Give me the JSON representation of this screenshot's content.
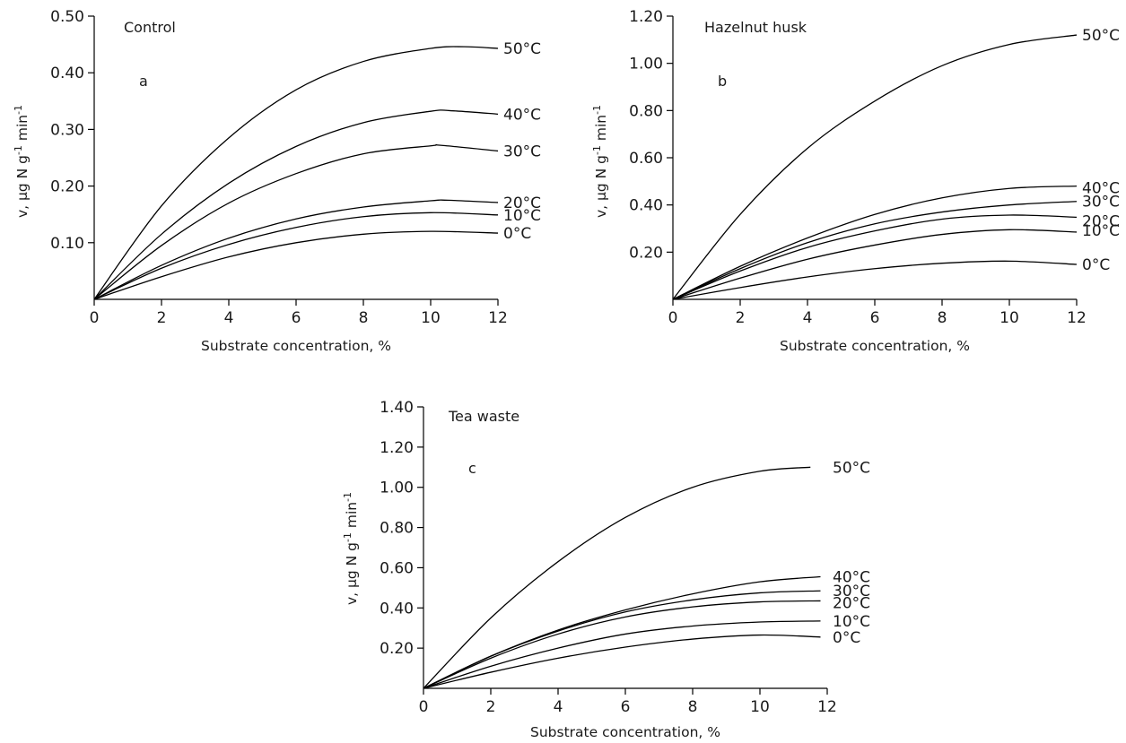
{
  "chart_data": [
    {
      "type": "line",
      "title": "Control",
      "panel_label": "a",
      "xlabel": "Substrate concentration, %",
      "ylabel_main": "v, µg N g",
      "ylabel_sup1": "-1",
      "ylabel_mid": " min",
      "ylabel_sup2": "-1",
      "xlim": [
        0,
        12
      ],
      "ylim": [
        0,
        0.5
      ],
      "x_ticks": [
        "0",
        "2",
        "4",
        "6",
        "8",
        "10",
        "12"
      ],
      "y_ticks": [
        "0.10",
        "0.20",
        "0.30",
        "0.40",
        "0.50"
      ],
      "series": [
        {
          "name": "50°C",
          "x": [
            0,
            2,
            4,
            6,
            8,
            10,
            11,
            12
          ],
          "y": [
            0,
            0.165,
            0.285,
            0.37,
            0.42,
            0.443,
            0.446,
            0.443
          ]
        },
        {
          "name": "40°C",
          "x": [
            0,
            2,
            4,
            6,
            8,
            10,
            10.6,
            12
          ],
          "y": [
            0,
            0.115,
            0.205,
            0.27,
            0.312,
            0.332,
            0.333,
            0.327
          ]
        },
        {
          "name": "30°C",
          "x": [
            0,
            2,
            4,
            6,
            8,
            10,
            10.3,
            12
          ],
          "y": [
            0,
            0.095,
            0.17,
            0.222,
            0.257,
            0.271,
            0.272,
            0.262
          ]
        },
        {
          "name": "20°C",
          "x": [
            0,
            2,
            4,
            6,
            8,
            10,
            10.5,
            12
          ],
          "y": [
            0,
            0.06,
            0.108,
            0.142,
            0.163,
            0.174,
            0.175,
            0.171
          ]
        },
        {
          "name": "10°C",
          "x": [
            0,
            2,
            4,
            6,
            8,
            10,
            12
          ],
          "y": [
            0,
            0.055,
            0.097,
            0.127,
            0.146,
            0.153,
            0.149
          ]
        },
        {
          "name": "0°C",
          "x": [
            0,
            2,
            4,
            6,
            8,
            10,
            12
          ],
          "y": [
            0,
            0.04,
            0.075,
            0.1,
            0.115,
            0.12,
            0.117
          ]
        }
      ]
    },
    {
      "type": "line",
      "title": "Hazelnut husk",
      "panel_label": "b",
      "xlabel": "Substrate concentration, %",
      "ylabel_main": "v, µg N g",
      "ylabel_sup1": "-1",
      "ylabel_mid": " min",
      "ylabel_sup2": "-1",
      "xlim": [
        0,
        12
      ],
      "ylim": [
        0,
        1.2
      ],
      "x_ticks": [
        "0",
        "2",
        "4",
        "6",
        "8",
        "10",
        "12"
      ],
      "y_ticks": [
        "0.20",
        "0.40",
        "0.60",
        "0.80",
        "1.00",
        "1.20"
      ],
      "series": [
        {
          "name": "50°C",
          "x": [
            0,
            2,
            4,
            6,
            8,
            10,
            12
          ],
          "y": [
            0,
            0.36,
            0.64,
            0.84,
            0.99,
            1.08,
            1.12
          ]
        },
        {
          "name": "40°C",
          "x": [
            0,
            2,
            4,
            6,
            8,
            10,
            12
          ],
          "y": [
            0,
            0.14,
            0.26,
            0.36,
            0.43,
            0.47,
            0.48
          ]
        },
        {
          "name": "30°C",
          "x": [
            0,
            2,
            4,
            6,
            8,
            10,
            12
          ],
          "y": [
            0,
            0.13,
            0.24,
            0.32,
            0.37,
            0.4,
            0.415
          ]
        },
        {
          "name": "20°C",
          "x": [
            0,
            2,
            4,
            6,
            8,
            10,
            12
          ],
          "y": [
            0,
            0.12,
            0.22,
            0.29,
            0.34,
            0.357,
            0.348
          ]
        },
        {
          "name": "10°C",
          "x": [
            0,
            2,
            4,
            6,
            8,
            10,
            12
          ],
          "y": [
            0,
            0.09,
            0.17,
            0.23,
            0.275,
            0.295,
            0.285
          ]
        },
        {
          "name": "0°C",
          "x": [
            0,
            2,
            4,
            6,
            8,
            10,
            12
          ],
          "y": [
            0,
            0.05,
            0.095,
            0.13,
            0.153,
            0.162,
            0.148
          ]
        }
      ]
    },
    {
      "type": "line",
      "title": "Tea waste",
      "panel_label": "c",
      "xlabel": "Substrate concentration, %",
      "ylabel_main": "v, µg N g",
      "ylabel_sup1": "-1",
      "ylabel_mid": " min",
      "ylabel_sup2": "-1",
      "xlim": [
        0,
        12
      ],
      "ylim": [
        0,
        1.4
      ],
      "x_ticks": [
        "0",
        "2",
        "4",
        "6",
        "8",
        "10",
        "12"
      ],
      "y_ticks": [
        "0.20",
        "0.40",
        "0.60",
        "0.80",
        "1.00",
        "1.20",
        "1.40"
      ],
      "series": [
        {
          "name": "50°C",
          "x": [
            0,
            2,
            4,
            6,
            8,
            10,
            11.5
          ],
          "y": [
            0,
            0.35,
            0.63,
            0.85,
            1.0,
            1.08,
            1.1
          ]
        },
        {
          "name": "40°C",
          "x": [
            0,
            2,
            4,
            6,
            8,
            10,
            11.8
          ],
          "y": [
            0,
            0.16,
            0.29,
            0.39,
            0.47,
            0.53,
            0.555
          ]
        },
        {
          "name": "30°C",
          "x": [
            0,
            2,
            4,
            6,
            8,
            10,
            11.8
          ],
          "y": [
            0,
            0.16,
            0.285,
            0.38,
            0.44,
            0.475,
            0.485
          ]
        },
        {
          "name": "20°C",
          "x": [
            0,
            2,
            4,
            6,
            8,
            10,
            11.8
          ],
          "y": [
            0,
            0.15,
            0.27,
            0.355,
            0.405,
            0.43,
            0.435
          ]
        },
        {
          "name": "10°C",
          "x": [
            0,
            2,
            4,
            6,
            8,
            10,
            11.8
          ],
          "y": [
            0,
            0.11,
            0.2,
            0.27,
            0.31,
            0.33,
            0.335
          ]
        },
        {
          "name": "0°C",
          "x": [
            0,
            2,
            4,
            6,
            8,
            10,
            11.8
          ],
          "y": [
            0,
            0.08,
            0.15,
            0.205,
            0.245,
            0.265,
            0.255
          ]
        }
      ]
    }
  ]
}
